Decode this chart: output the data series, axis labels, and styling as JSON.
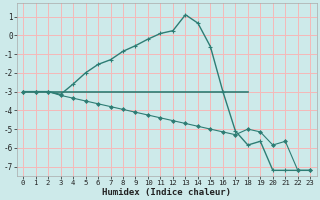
{
  "line1_x": [
    0,
    1,
    2,
    3,
    4,
    5,
    6,
    7,
    8,
    9,
    10,
    11,
    12,
    13,
    14,
    15,
    16,
    17,
    18,
    19,
    20,
    21,
    22,
    23
  ],
  "line1_y": [
    -3.0,
    -3.0,
    -3.0,
    -3.15,
    -2.6,
    -2.0,
    -1.55,
    -1.3,
    -0.85,
    -0.55,
    -0.2,
    0.1,
    0.25,
    1.1,
    0.65,
    -0.6,
    -3.0,
    -5.1,
    -5.85,
    -5.65,
    -7.2,
    -7.2,
    -7.2,
    -7.2
  ],
  "line2_x": [
    0,
    1,
    2,
    3,
    4,
    5,
    6,
    7,
    8,
    9,
    10,
    11,
    12,
    13,
    14,
    15,
    16,
    17,
    18,
    19,
    20,
    21,
    22,
    23
  ],
  "line2_y": [
    -3.0,
    -3.0,
    -3.0,
    -3.2,
    -3.35,
    -3.5,
    -3.65,
    -3.8,
    -3.95,
    -4.1,
    -4.25,
    -4.4,
    -4.55,
    -4.7,
    -4.85,
    -5.0,
    -5.15,
    -5.3,
    -5.0,
    -5.15,
    -5.85,
    -5.65,
    -7.2,
    -7.2
  ],
  "line3_x": [
    0,
    18
  ],
  "line3_y": [
    -3.0,
    -3.0
  ],
  "color": "#2d7d74",
  "bg_color": "#cdeaea",
  "grid_color": "#f5b8b8",
  "xlabel": "Humidex (Indice chaleur)",
  "xlim": [
    -0.5,
    23.5
  ],
  "ylim": [
    -7.5,
    1.7
  ],
  "yticks": [
    1,
    0,
    -1,
    -2,
    -3,
    -4,
    -5,
    -6,
    -7
  ],
  "xticks": [
    0,
    1,
    2,
    3,
    4,
    5,
    6,
    7,
    8,
    9,
    10,
    11,
    12,
    13,
    14,
    15,
    16,
    17,
    18,
    19,
    20,
    21,
    22,
    23
  ]
}
